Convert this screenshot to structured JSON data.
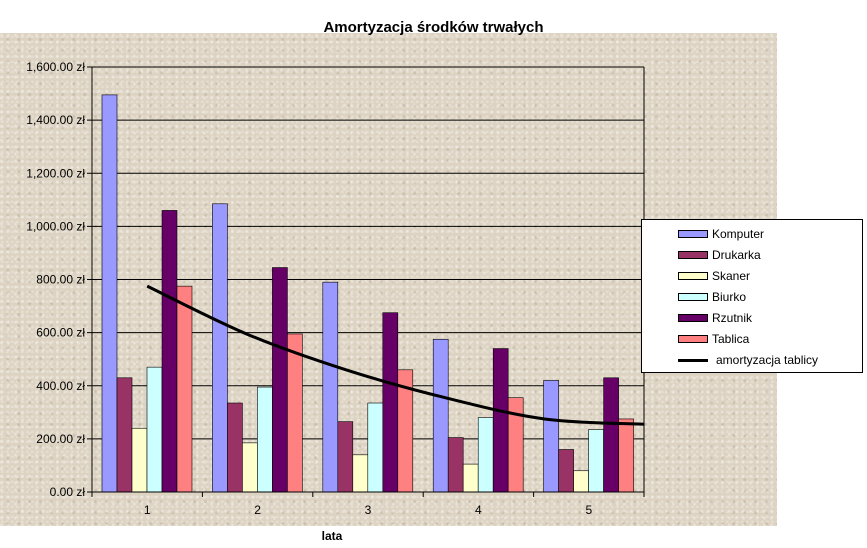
{
  "chart_data": {
    "type": "bar",
    "title": "Amortyzacja środków trwałych",
    "xlabel": "lata",
    "ylabel": "",
    "categories": [
      "1",
      "2",
      "3",
      "4",
      "5"
    ],
    "ylim": [
      0,
      1600
    ],
    "yticks": [
      "0.00 zł",
      "200.00 zł",
      "400.00 zł",
      "600.00 zł",
      "800.00 zł",
      "1,000.00 zł",
      "1,200.00 zł",
      "1,400.00 zł",
      "1,600.00 zł"
    ],
    "ytick_values": [
      0,
      200,
      400,
      600,
      800,
      1000,
      1200,
      1400,
      1600
    ],
    "grid": true,
    "legend_position": "right",
    "series": [
      {
        "name": "Komputer",
        "color": "#9999ff",
        "values": [
          1495,
          1085,
          790,
          575,
          420
        ]
      },
      {
        "name": "Drukarka",
        "color": "#993366",
        "values": [
          430,
          335,
          265,
          205,
          160
        ]
      },
      {
        "name": "Skaner",
        "color": "#ffffcc",
        "values": [
          240,
          185,
          140,
          105,
          80
        ]
      },
      {
        "name": "Biurko",
        "color": "#ccffff",
        "values": [
          470,
          395,
          335,
          280,
          235
        ]
      },
      {
        "name": "Rzutnik",
        "color": "#660066",
        "values": [
          1060,
          845,
          675,
          540,
          430
        ]
      },
      {
        "name": "Tablica",
        "color": "#ff8080",
        "values": [
          775,
          595,
          460,
          355,
          275
        ]
      }
    ],
    "trendline": {
      "name": "amortyzacja tablicy",
      "color": "#000000",
      "x_start": 1,
      "x_end": 5.5,
      "values": [
        775,
        595,
        460,
        355,
        275,
        255
      ]
    }
  }
}
